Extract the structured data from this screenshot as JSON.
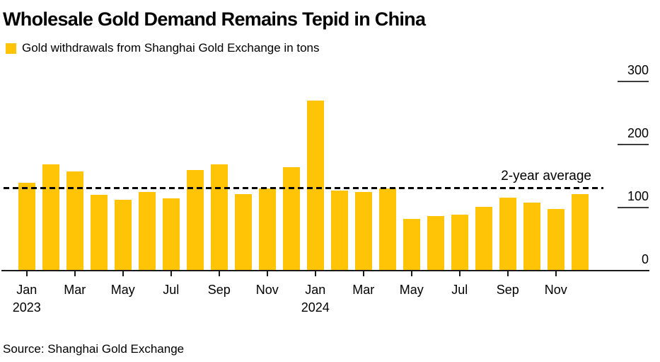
{
  "header": {
    "title": "Wholesale Gold Demand Remains Tepid in China",
    "legend_label": "Gold withdrawals from Shanghai Gold Exchange in tons"
  },
  "source": "Source: Shanghai Gold Exchange",
  "colors": {
    "bar": "#FFC405",
    "axis_line": "#1a1a1a",
    "tick_line": "#3d3d3d",
    "text": "#000000",
    "average_line": "#000000"
  },
  "chart_data": {
    "type": "bar",
    "title": "Wholesale Gold Demand Remains Tepid in China",
    "series_label": "Gold withdrawals from Shanghai Gold Exchange in tons",
    "ylabel": "tons",
    "categories": [
      "Jan 2023",
      "Feb 2023",
      "Mar 2023",
      "Apr 2023",
      "May 2023",
      "Jun 2023",
      "Jul 2023",
      "Aug 2023",
      "Sep 2023",
      "Oct 2023",
      "Nov 2023",
      "Dec 2023",
      "Jan 2024",
      "Feb 2024",
      "Mar 2024",
      "Apr 2024",
      "May 2024",
      "Jun 2024",
      "Jul 2024",
      "Aug 2024",
      "Sep 2024",
      "Oct 2024",
      "Nov 2024",
      "Dec 2024"
    ],
    "values": [
      139,
      168,
      157,
      120,
      112,
      124,
      114,
      160,
      169,
      121,
      130,
      164,
      270,
      127,
      124,
      130,
      82,
      86,
      89,
      101,
      115,
      108,
      98,
      121
    ],
    "x_ticks": [
      {
        "label": "Jan",
        "year": "2023"
      },
      {
        "label": "Mar"
      },
      {
        "label": "May"
      },
      {
        "label": "Jul"
      },
      {
        "label": "Sep"
      },
      {
        "label": "Nov"
      },
      {
        "label": "Jan",
        "year": "2024"
      },
      {
        "label": "Mar"
      },
      {
        "label": "May"
      },
      {
        "label": "Jul"
      },
      {
        "label": "Sep"
      },
      {
        "label": "Nov"
      }
    ],
    "yticks": [
      {
        "value": 0,
        "label": "0"
      },
      {
        "value": 100,
        "label": "100"
      },
      {
        "value": 200,
        "label": "200"
      },
      {
        "value": 300,
        "label": "300"
      }
    ],
    "ylim": [
      0,
      317
    ],
    "grid": false,
    "axis_side": "right",
    "legend_position": "top-left",
    "average_line": {
      "value": 131,
      "label": "2-year average"
    }
  }
}
